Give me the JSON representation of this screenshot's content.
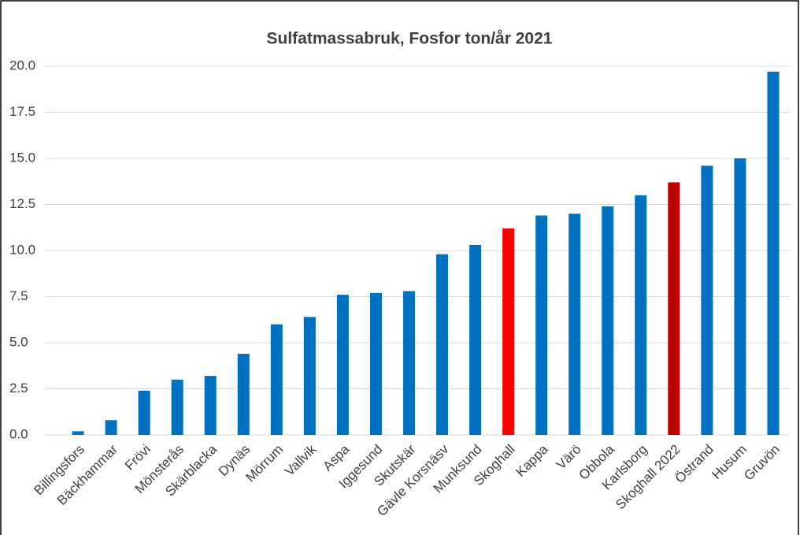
{
  "chart_data": {
    "type": "bar",
    "title": "Sulfatmassabruk, Fosfor ton/år 2021",
    "categories": [
      "Billingsfors",
      "Bäckhammar",
      "Frövi",
      "Mönsterås",
      "Skärblacka",
      "Dynäs",
      "Mörrum",
      "Vallvik",
      "Aspa",
      "Iggesund",
      "Skutskär",
      "Gävle Korsnäsv",
      "Munksund",
      "Skoghall",
      "Kappa",
      "Värö",
      "Obbola",
      "Karlsborg",
      "Skoghall 2022",
      "Östrand",
      "Husum",
      "Gruvön"
    ],
    "values": [
      0.2,
      0.8,
      2.4,
      3.0,
      3.2,
      4.4,
      6.0,
      6.4,
      7.6,
      7.7,
      7.8,
      9.8,
      10.3,
      11.2,
      11.9,
      12.0,
      12.4,
      13.0,
      13.7,
      14.6,
      15.0,
      19.7
    ],
    "colors": [
      "#0070c0",
      "#0070c0",
      "#0070c0",
      "#0070c0",
      "#0070c0",
      "#0070c0",
      "#0070c0",
      "#0070c0",
      "#0070c0",
      "#0070c0",
      "#0070c0",
      "#0070c0",
      "#0070c0",
      "#ff0000",
      "#0070c0",
      "#0070c0",
      "#0070c0",
      "#0070c0",
      "#c00000",
      "#0070c0",
      "#0070c0",
      "#0070c0"
    ],
    "ylim": [
      0,
      20
    ],
    "yticks": [
      {
        "value": 0,
        "label": "0.0"
      },
      2.5,
      {
        "value": 5,
        "label": "5.0"
      },
      7.5,
      {
        "value": 10,
        "label": "10.0"
      },
      12.5,
      {
        "value": 15,
        "label": "15.0"
      },
      17.5,
      {
        "value": 20,
        "label": "20.0"
      }
    ],
    "grid": true
  }
}
